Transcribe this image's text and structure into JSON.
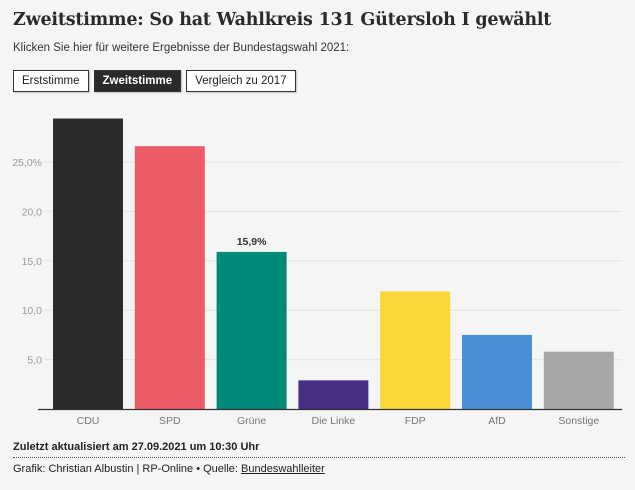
{
  "header": {
    "title": "Zweitstimme: So hat Wahlkreis 131 Gütersloh I gewählt",
    "subtitle": "Klicken Sie hier für weitere Ergebnisse der Bundestagswahl 2021:"
  },
  "buttons": [
    {
      "label": "Erststimme",
      "active": false
    },
    {
      "label": "Zweitstimme",
      "active": true
    },
    {
      "label": "Vergleich zu 2017",
      "active": false
    }
  ],
  "chart_data": {
    "type": "bar",
    "categories": [
      "CDU",
      "SPD",
      "Grüne",
      "Die Linke",
      "FDP",
      "AfD",
      "Sonstige"
    ],
    "values": [
      29.4,
      26.6,
      15.9,
      2.9,
      11.9,
      7.5,
      5.8
    ],
    "colors": [
      "#2b2b2b",
      "#ec5b65",
      "#008a78",
      "#4a2f86",
      "#f7d836",
      "#4a8fd4",
      "#a8a8a8"
    ],
    "data_labels": {
      "2": "15,9%"
    },
    "yticks": [
      5,
      10,
      15,
      20,
      25
    ],
    "ytick_labels": [
      "5,0",
      "10,0",
      "15,0",
      "20,0",
      "25,0%"
    ],
    "ylim": [
      0,
      30
    ],
    "grid": true,
    "xlabel": "",
    "ylabel": ""
  },
  "footer": {
    "updated": "Zuletzt aktualisiert am 27.09.2021 um 10:30 Uhr",
    "credit_prefix": "Grafik: Christian Albustin | RP-Online • Quelle: ",
    "source_link": "Bundeswahlleiter"
  }
}
